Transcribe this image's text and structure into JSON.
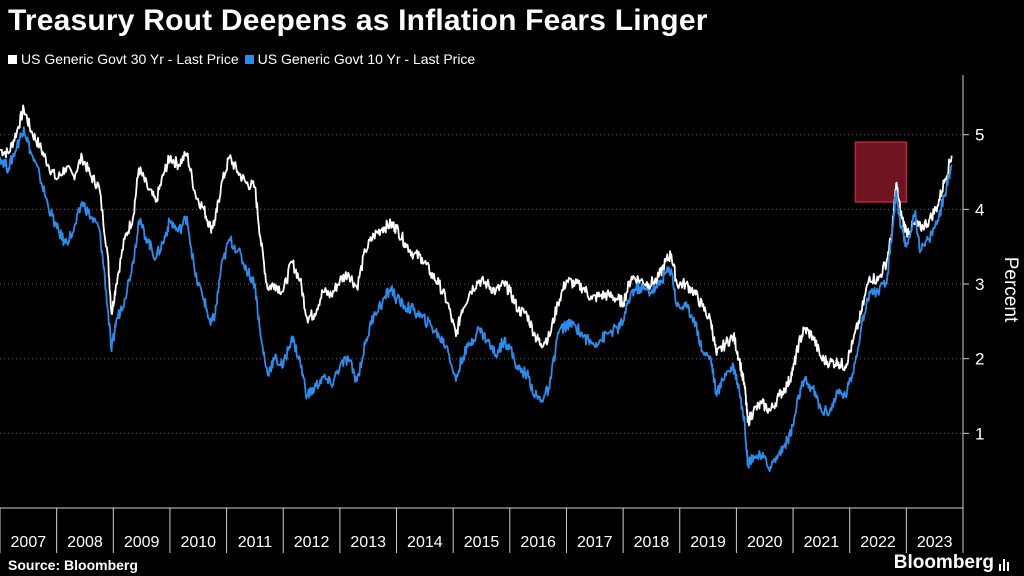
{
  "chart_data": {
    "type": "line",
    "title": "Treasury Rout Deepens as Inflation Fears Linger",
    "ylabel": "Percent",
    "xlabel": "",
    "ylim": [
      0,
      5.8
    ],
    "yticks": [
      1,
      2,
      3,
      4,
      5
    ],
    "xlim": [
      2007.0,
      2024.0
    ],
    "xticks": [
      2007,
      2008,
      2009,
      2010,
      2011,
      2012,
      2013,
      2014,
      2015,
      2016,
      2017,
      2018,
      2019,
      2020,
      2021,
      2022,
      2023
    ],
    "xticklabels": [
      "2007",
      "2008",
      "2009",
      "2010",
      "2011",
      "2012",
      "2013",
      "2014",
      "2015",
      "2016",
      "2017",
      "2018",
      "2019",
      "2020",
      "2021",
      "2022",
      "2023"
    ],
    "highlight": {
      "x": [
        2022.1,
        2023.0
      ],
      "y": [
        4.1,
        4.9
      ]
    },
    "series": [
      {
        "name": "US Generic Govt 30 Yr - Last Price",
        "color": "#ffffff",
        "points": [
          [
            2007.0,
            4.8
          ],
          [
            2007.15,
            4.75
          ],
          [
            2007.3,
            5.05
          ],
          [
            2007.42,
            5.35
          ],
          [
            2007.55,
            5.05
          ],
          [
            2007.7,
            4.85
          ],
          [
            2007.85,
            4.6
          ],
          [
            2008.0,
            4.4
          ],
          [
            2008.15,
            4.55
          ],
          [
            2008.3,
            4.45
          ],
          [
            2008.45,
            4.7
          ],
          [
            2008.6,
            4.45
          ],
          [
            2008.75,
            4.3
          ],
          [
            2008.9,
            3.4
          ],
          [
            2008.97,
            2.6
          ],
          [
            2009.05,
            3.0
          ],
          [
            2009.2,
            3.6
          ],
          [
            2009.35,
            3.9
          ],
          [
            2009.45,
            4.55
          ],
          [
            2009.6,
            4.3
          ],
          [
            2009.75,
            4.1
          ],
          [
            2009.9,
            4.5
          ],
          [
            2010.0,
            4.7
          ],
          [
            2010.15,
            4.6
          ],
          [
            2010.3,
            4.75
          ],
          [
            2010.45,
            4.2
          ],
          [
            2010.6,
            4.0
          ],
          [
            2010.72,
            3.75
          ],
          [
            2010.8,
            3.85
          ],
          [
            2010.9,
            4.3
          ],
          [
            2011.05,
            4.7
          ],
          [
            2011.2,
            4.5
          ],
          [
            2011.35,
            4.35
          ],
          [
            2011.5,
            4.3
          ],
          [
            2011.6,
            3.6
          ],
          [
            2011.72,
            2.95
          ],
          [
            2011.85,
            3.0
          ],
          [
            2012.0,
            2.9
          ],
          [
            2012.15,
            3.3
          ],
          [
            2012.3,
            3.05
          ],
          [
            2012.42,
            2.55
          ],
          [
            2012.55,
            2.6
          ],
          [
            2012.7,
            2.9
          ],
          [
            2012.85,
            2.85
          ],
          [
            2013.0,
            3.05
          ],
          [
            2013.15,
            3.15
          ],
          [
            2013.3,
            2.95
          ],
          [
            2013.45,
            3.45
          ],
          [
            2013.6,
            3.65
          ],
          [
            2013.75,
            3.75
          ],
          [
            2013.9,
            3.8
          ],
          [
            2014.0,
            3.75
          ],
          [
            2014.15,
            3.55
          ],
          [
            2014.3,
            3.4
          ],
          [
            2014.45,
            3.35
          ],
          [
            2014.6,
            3.15
          ],
          [
            2014.75,
            3.0
          ],
          [
            2014.9,
            2.75
          ],
          [
            2015.05,
            2.3
          ],
          [
            2015.15,
            2.65
          ],
          [
            2015.3,
            2.9
          ],
          [
            2015.45,
            3.05
          ],
          [
            2015.6,
            3.0
          ],
          [
            2015.75,
            2.9
          ],
          [
            2015.9,
            3.0
          ],
          [
            2016.0,
            2.9
          ],
          [
            2016.15,
            2.65
          ],
          [
            2016.3,
            2.6
          ],
          [
            2016.45,
            2.3
          ],
          [
            2016.55,
            2.2
          ],
          [
            2016.7,
            2.3
          ],
          [
            2016.85,
            2.75
          ],
          [
            2017.0,
            3.05
          ],
          [
            2017.15,
            3.0
          ],
          [
            2017.3,
            2.95
          ],
          [
            2017.45,
            2.8
          ],
          [
            2017.6,
            2.85
          ],
          [
            2017.75,
            2.85
          ],
          [
            2017.9,
            2.8
          ],
          [
            2018.0,
            2.75
          ],
          [
            2018.15,
            3.1
          ],
          [
            2018.3,
            3.05
          ],
          [
            2018.45,
            3.0
          ],
          [
            2018.6,
            3.05
          ],
          [
            2018.75,
            3.3
          ],
          [
            2018.85,
            3.4
          ],
          [
            2018.95,
            3.0
          ],
          [
            2019.1,
            3.0
          ],
          [
            2019.25,
            2.9
          ],
          [
            2019.4,
            2.7
          ],
          [
            2019.55,
            2.5
          ],
          [
            2019.65,
            2.05
          ],
          [
            2019.8,
            2.2
          ],
          [
            2019.95,
            2.3
          ],
          [
            2020.05,
            2.0
          ],
          [
            2020.15,
            1.6
          ],
          [
            2020.2,
            1.15
          ],
          [
            2020.3,
            1.3
          ],
          [
            2020.45,
            1.4
          ],
          [
            2020.6,
            1.3
          ],
          [
            2020.75,
            1.5
          ],
          [
            2020.9,
            1.65
          ],
          [
            2021.0,
            1.85
          ],
          [
            2021.1,
            2.2
          ],
          [
            2021.2,
            2.4
          ],
          [
            2021.35,
            2.3
          ],
          [
            2021.5,
            2.0
          ],
          [
            2021.65,
            1.95
          ],
          [
            2021.8,
            1.95
          ],
          [
            2021.92,
            1.9
          ],
          [
            2022.05,
            2.2
          ],
          [
            2022.2,
            2.6
          ],
          [
            2022.35,
            3.1
          ],
          [
            2022.5,
            3.05
          ],
          [
            2022.65,
            3.3
          ],
          [
            2022.75,
            3.7
          ],
          [
            2022.82,
            4.35
          ],
          [
            2022.9,
            3.95
          ],
          [
            2023.0,
            3.7
          ],
          [
            2023.15,
            3.8
          ],
          [
            2023.25,
            3.75
          ],
          [
            2023.4,
            3.85
          ],
          [
            2023.55,
            4.05
          ],
          [
            2023.68,
            4.4
          ],
          [
            2023.8,
            4.72
          ]
        ]
      },
      {
        "name": "US Generic Govt 10 Yr - Last Price",
        "color": "#2f8bea",
        "points": [
          [
            2007.0,
            4.7
          ],
          [
            2007.15,
            4.55
          ],
          [
            2007.3,
            4.85
          ],
          [
            2007.42,
            5.1
          ],
          [
            2007.55,
            4.75
          ],
          [
            2007.7,
            4.45
          ],
          [
            2007.85,
            4.05
          ],
          [
            2008.0,
            3.75
          ],
          [
            2008.15,
            3.55
          ],
          [
            2008.3,
            3.7
          ],
          [
            2008.45,
            4.1
          ],
          [
            2008.6,
            3.9
          ],
          [
            2008.75,
            3.75
          ],
          [
            2008.85,
            3.1
          ],
          [
            2008.97,
            2.1
          ],
          [
            2009.05,
            2.5
          ],
          [
            2009.2,
            2.8
          ],
          [
            2009.35,
            3.3
          ],
          [
            2009.45,
            3.85
          ],
          [
            2009.6,
            3.6
          ],
          [
            2009.75,
            3.35
          ],
          [
            2009.9,
            3.6
          ],
          [
            2010.0,
            3.85
          ],
          [
            2010.15,
            3.7
          ],
          [
            2010.3,
            3.9
          ],
          [
            2010.45,
            3.1
          ],
          [
            2010.6,
            2.8
          ],
          [
            2010.72,
            2.45
          ],
          [
            2010.8,
            2.6
          ],
          [
            2010.9,
            3.2
          ],
          [
            2011.05,
            3.6
          ],
          [
            2011.2,
            3.45
          ],
          [
            2011.35,
            3.2
          ],
          [
            2011.5,
            3.0
          ],
          [
            2011.6,
            2.3
          ],
          [
            2011.72,
            1.8
          ],
          [
            2011.85,
            2.0
          ],
          [
            2012.0,
            1.9
          ],
          [
            2012.15,
            2.3
          ],
          [
            2012.3,
            1.95
          ],
          [
            2012.42,
            1.5
          ],
          [
            2012.55,
            1.6
          ],
          [
            2012.7,
            1.75
          ],
          [
            2012.85,
            1.65
          ],
          [
            2013.0,
            1.9
          ],
          [
            2013.15,
            2.0
          ],
          [
            2013.3,
            1.7
          ],
          [
            2013.45,
            2.2
          ],
          [
            2013.6,
            2.6
          ],
          [
            2013.75,
            2.75
          ],
          [
            2013.9,
            2.95
          ],
          [
            2014.0,
            2.8
          ],
          [
            2014.15,
            2.7
          ],
          [
            2014.3,
            2.65
          ],
          [
            2014.45,
            2.55
          ],
          [
            2014.6,
            2.45
          ],
          [
            2014.75,
            2.3
          ],
          [
            2014.9,
            2.15
          ],
          [
            2015.05,
            1.7
          ],
          [
            2015.15,
            2.0
          ],
          [
            2015.3,
            2.2
          ],
          [
            2015.45,
            2.4
          ],
          [
            2015.6,
            2.25
          ],
          [
            2015.75,
            2.05
          ],
          [
            2015.9,
            2.25
          ],
          [
            2016.0,
            2.15
          ],
          [
            2016.15,
            1.85
          ],
          [
            2016.3,
            1.8
          ],
          [
            2016.45,
            1.5
          ],
          [
            2016.55,
            1.45
          ],
          [
            2016.7,
            1.6
          ],
          [
            2016.85,
            2.35
          ],
          [
            2017.0,
            2.45
          ],
          [
            2017.15,
            2.45
          ],
          [
            2017.3,
            2.3
          ],
          [
            2017.45,
            2.2
          ],
          [
            2017.6,
            2.25
          ],
          [
            2017.75,
            2.35
          ],
          [
            2017.9,
            2.4
          ],
          [
            2018.0,
            2.5
          ],
          [
            2018.15,
            2.9
          ],
          [
            2018.3,
            2.95
          ],
          [
            2018.45,
            2.9
          ],
          [
            2018.6,
            2.95
          ],
          [
            2018.75,
            3.15
          ],
          [
            2018.85,
            3.2
          ],
          [
            2018.95,
            2.7
          ],
          [
            2019.1,
            2.7
          ],
          [
            2019.25,
            2.55
          ],
          [
            2019.4,
            2.1
          ],
          [
            2019.55,
            2.0
          ],
          [
            2019.65,
            1.5
          ],
          [
            2019.8,
            1.8
          ],
          [
            2019.95,
            1.9
          ],
          [
            2020.05,
            1.6
          ],
          [
            2020.15,
            1.1
          ],
          [
            2020.2,
            0.6
          ],
          [
            2020.3,
            0.7
          ],
          [
            2020.45,
            0.68
          ],
          [
            2020.6,
            0.55
          ],
          [
            2020.75,
            0.72
          ],
          [
            2020.9,
            0.9
          ],
          [
            2021.0,
            1.1
          ],
          [
            2021.1,
            1.5
          ],
          [
            2021.2,
            1.7
          ],
          [
            2021.35,
            1.6
          ],
          [
            2021.5,
            1.3
          ],
          [
            2021.65,
            1.3
          ],
          [
            2021.8,
            1.55
          ],
          [
            2021.92,
            1.5
          ],
          [
            2022.05,
            1.8
          ],
          [
            2022.2,
            2.4
          ],
          [
            2022.35,
            2.9
          ],
          [
            2022.5,
            2.9
          ],
          [
            2022.65,
            3.0
          ],
          [
            2022.75,
            3.7
          ],
          [
            2022.82,
            4.25
          ],
          [
            2022.9,
            3.75
          ],
          [
            2023.0,
            3.5
          ],
          [
            2023.15,
            3.95
          ],
          [
            2023.25,
            3.45
          ],
          [
            2023.4,
            3.6
          ],
          [
            2023.55,
            3.85
          ],
          [
            2023.68,
            4.2
          ],
          [
            2023.8,
            4.6
          ]
        ]
      }
    ]
  },
  "source": "Source: Bloomberg",
  "brand": "Bloomberg",
  "colors": {
    "background": "#000000",
    "highlight_fill": "#8b1a2a",
    "highlight_stroke": "#c0243a",
    "axis": "#d0d0d0"
  }
}
